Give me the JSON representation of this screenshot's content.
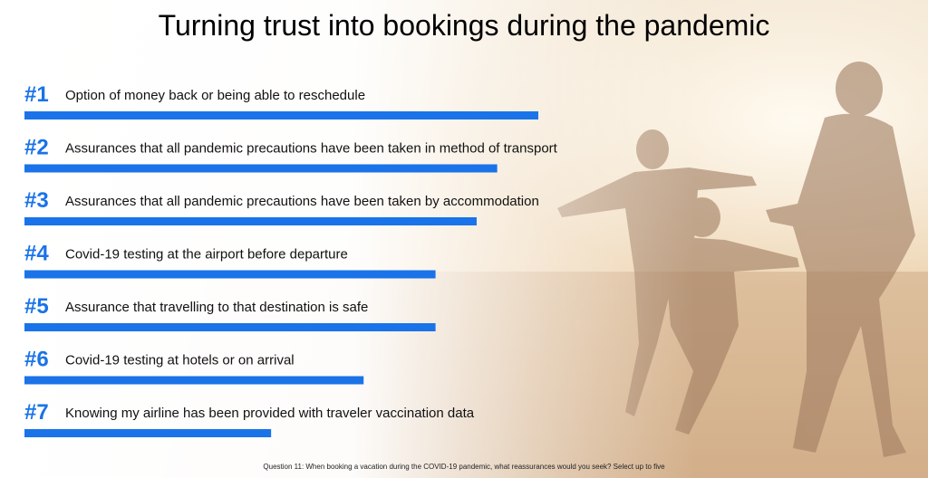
{
  "title": "Turning trust into bookings during the pandemic",
  "footnote": "Question 11: When booking a vacation during the COVID-19 pandemic, what reassurances would you seek? Select up to five",
  "colors": {
    "bar": "#1a73e8",
    "rank": "#1a73e8",
    "label": "#111111"
  },
  "background": {
    "image": "beach-family-silhouette-sunset"
  },
  "chart_data": {
    "type": "bar",
    "orientation": "horizontal",
    "ranks": [
      "#1",
      "#2",
      "#3",
      "#4",
      "#5",
      "#6",
      "#7"
    ],
    "categories": [
      "Option of money back or being able to reschedule",
      "Assurances that all pandemic precautions have been taken in method of transport",
      "Assurances that all pandemic precautions have been taken by accommodation",
      "Covid-19 testing at the airport before departure",
      "Assurance that travelling to that destination is safe",
      "Covid-19 testing at hotels or on arrival",
      "Knowing my airline has been provided with traveler vaccination data"
    ],
    "values": [
      100,
      92,
      88,
      80,
      80,
      66,
      48
    ],
    "xlim": [
      0,
      100
    ],
    "grid": false,
    "legend": "none"
  }
}
